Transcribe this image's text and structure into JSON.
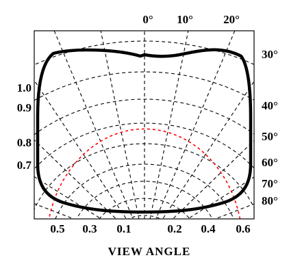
{
  "chart_data": {
    "type": "line",
    "title": "",
    "xlabel": "VIEW ANGLE",
    "ylabel": "",
    "grid": true,
    "top_tick_labels": [
      "0°",
      "10°",
      "20°"
    ],
    "right_tick_labels": [
      "30°",
      "40°",
      "50°",
      "60°",
      "70°",
      "80°"
    ],
    "left_tick_labels": [
      "1.0",
      "0.9",
      "0.8",
      "0.7"
    ],
    "bottom_tick_labels": [
      "0.5",
      "0.3",
      "0.1",
      "0.2",
      "0.4",
      "0.6"
    ],
    "series": [
      {
        "type": "boundary-curve",
        "color": "#000000"
      },
      {
        "type": "iso-contour",
        "color": "#ff0000",
        "style": "dashed"
      }
    ],
    "grid_color": "#000000",
    "grid_style": "dashed"
  }
}
